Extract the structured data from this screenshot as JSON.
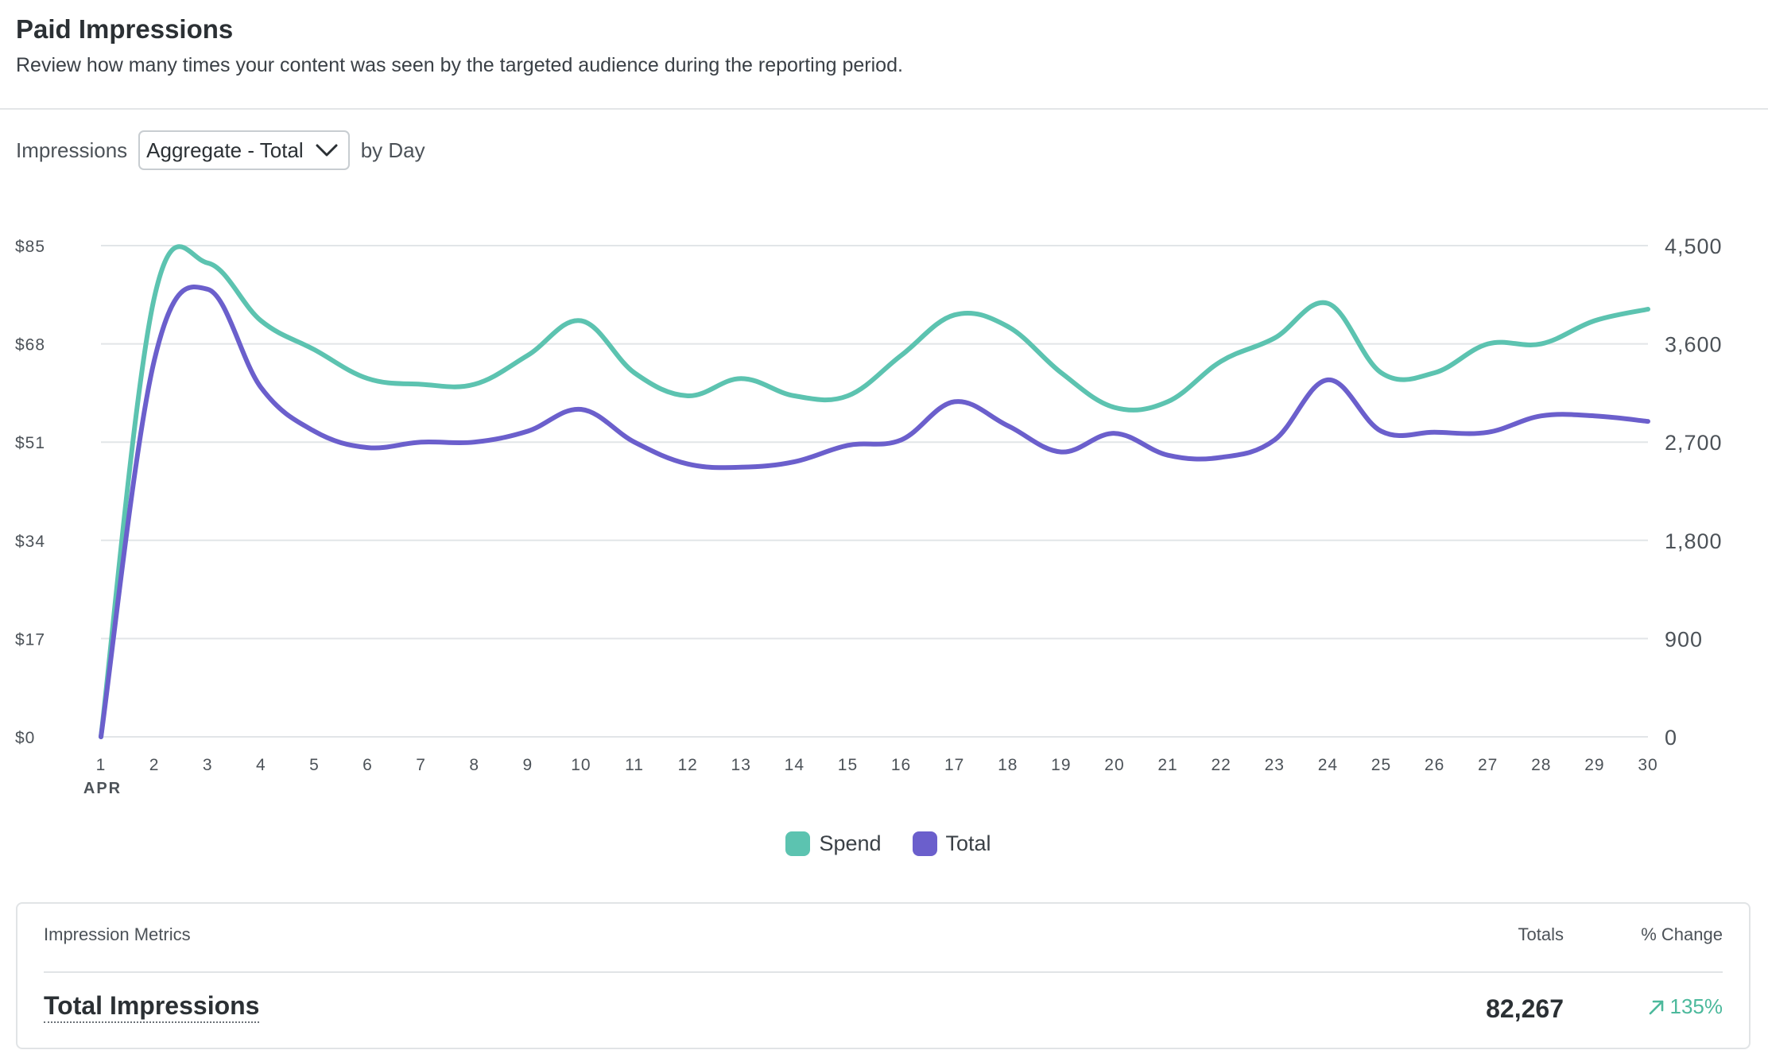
{
  "header": {
    "title": "Paid Impressions",
    "subtitle": "Review how many times your content was seen by the targeted audience during the reporting period."
  },
  "controls": {
    "metric_label": "Impressions",
    "aggregate_selected": "Aggregate - Total",
    "period_label": "by Day"
  },
  "chart_data": {
    "type": "line",
    "x": [
      1,
      2,
      3,
      4,
      5,
      6,
      7,
      8,
      9,
      10,
      11,
      12,
      13,
      14,
      15,
      16,
      17,
      18,
      19,
      20,
      21,
      22,
      23,
      24,
      25,
      26,
      27,
      28,
      29,
      30
    ],
    "x_tick_labels": [
      "1",
      "2",
      "3",
      "4",
      "5",
      "6",
      "7",
      "8",
      "9",
      "10",
      "11",
      "12",
      "13",
      "14",
      "15",
      "16",
      "17",
      "18",
      "19",
      "20",
      "21",
      "22",
      "23",
      "24",
      "25",
      "26",
      "27",
      "28",
      "29",
      "30"
    ],
    "x_sublabel": "APR",
    "y_left": {
      "ticks": [
        0,
        17,
        34,
        51,
        68,
        85
      ],
      "tick_labels": [
        "$0",
        "$17",
        "$34",
        "$51",
        "$68",
        "$85"
      ],
      "range": [
        0,
        85
      ]
    },
    "y_right": {
      "ticks": [
        0,
        900,
        1800,
        2700,
        3600,
        4500
      ],
      "tick_labels": [
        "0",
        "900",
        "1,800",
        "2,700",
        "3,600",
        "4,500"
      ],
      "range": [
        0,
        4500
      ]
    },
    "grid": true,
    "legend_position": "bottom-center",
    "series": [
      {
        "name": "Spend",
        "axis": "left",
        "color": "#5cc3b0",
        "values": [
          0,
          76,
          82,
          72,
          67,
          62,
          61,
          61,
          66,
          72,
          63,
          59,
          62,
          59,
          59,
          66,
          73,
          71,
          63,
          57,
          58,
          65,
          69,
          75,
          63,
          63,
          68,
          68,
          72,
          74
        ]
      },
      {
        "name": "Total",
        "axis": "right",
        "color": "#6b5fcc",
        "values": [
          0,
          3450,
          4100,
          3200,
          2800,
          2650,
          2700,
          2700,
          2800,
          3000,
          2700,
          2500,
          2470,
          2520,
          2670,
          2720,
          3070,
          2850,
          2610,
          2780,
          2580,
          2560,
          2720,
          3270,
          2800,
          2790,
          2790,
          2940,
          2940,
          2890
        ]
      }
    ]
  },
  "metrics_table": {
    "header_label": "Impression Metrics",
    "header_totals": "Totals",
    "header_change": "% Change",
    "row_label": "Total Impressions",
    "row_total": "82,267",
    "row_change": "135%",
    "change_color": "#4cb99c",
    "change_icon": "arrow-up-right-icon"
  }
}
